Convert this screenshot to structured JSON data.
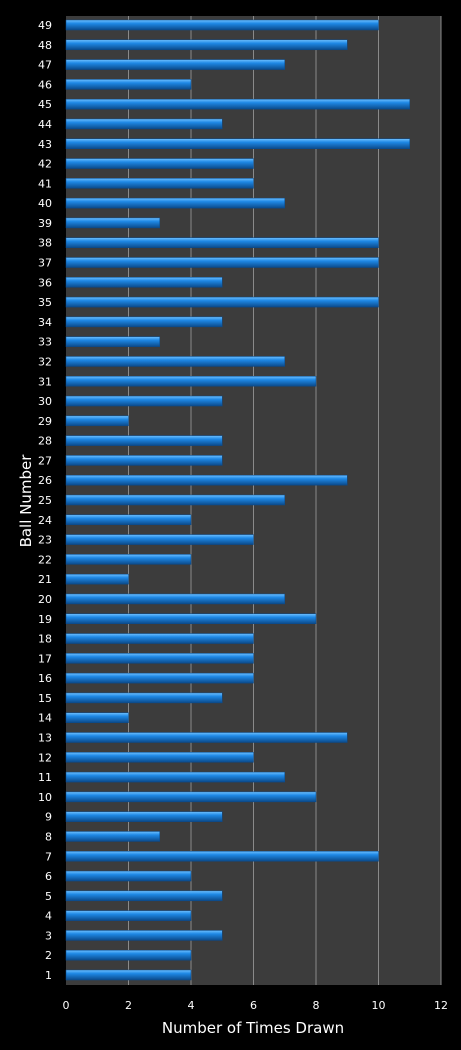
{
  "chart_data": {
    "type": "bar",
    "orientation": "horizontal",
    "xlabel": "Number of Times Drawn",
    "ylabel": "Ball Number",
    "xlim": [
      0,
      12
    ],
    "xticks": [
      "0",
      "2",
      "4",
      "6",
      "8",
      "10",
      "12"
    ],
    "grid": "vertical",
    "colors": {
      "bar": "#1e88e5",
      "bar_highlight": "#6ec0ff",
      "bar_shadow": "#0b4a8a",
      "plot_background": "#3c3c3c",
      "page_background": "#000000",
      "gridline": "#8a8a8a"
    },
    "categories": [
      "1",
      "2",
      "3",
      "4",
      "5",
      "6",
      "7",
      "8",
      "9",
      "10",
      "11",
      "12",
      "13",
      "14",
      "15",
      "16",
      "17",
      "18",
      "19",
      "20",
      "21",
      "22",
      "23",
      "24",
      "25",
      "26",
      "27",
      "28",
      "29",
      "30",
      "31",
      "32",
      "33",
      "34",
      "35",
      "36",
      "37",
      "38",
      "39",
      "40",
      "41",
      "42",
      "43",
      "44",
      "45",
      "46",
      "47",
      "48",
      "49"
    ],
    "values": [
      4,
      4,
      5,
      4,
      5,
      4,
      10,
      3,
      5,
      8,
      7,
      6,
      9,
      2,
      5,
      6,
      6,
      6,
      8,
      7,
      2,
      4,
      6,
      4,
      7,
      9,
      5,
      5,
      2,
      5,
      8,
      7,
      3,
      5,
      10,
      5,
      10,
      10,
      3,
      7,
      6,
      6,
      11,
      5,
      11,
      4,
      7,
      9,
      10
    ]
  }
}
